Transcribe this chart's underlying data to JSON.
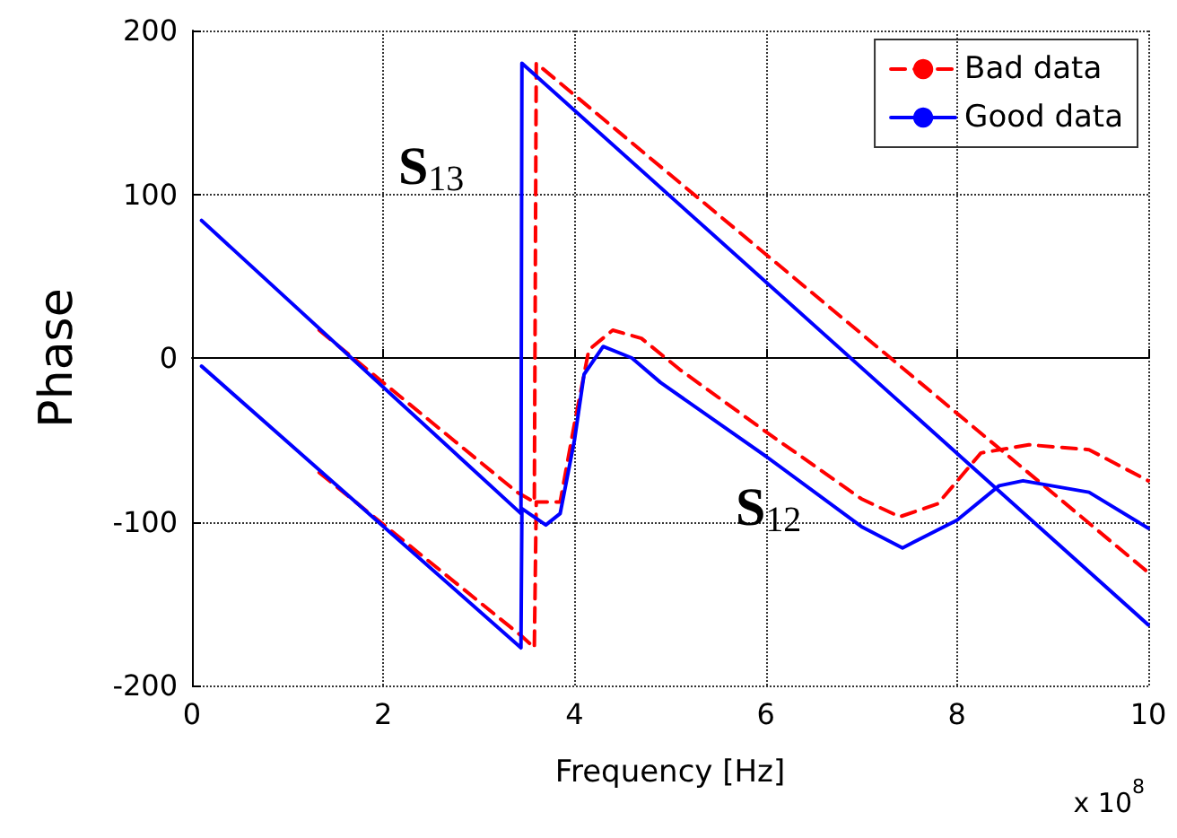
{
  "chart_data": {
    "type": "line",
    "xlabel": "Frequency [Hz]",
    "ylabel": "Phase",
    "xlim": [
      0,
      10
    ],
    "ylim": [
      -200,
      200
    ],
    "xticks": [
      0,
      2,
      4,
      6,
      8,
      10
    ],
    "yticks": [
      -200,
      -100,
      0,
      100,
      200
    ],
    "grid": true,
    "legend": "top right",
    "marker": "none",
    "series": [
      {
        "name": "Bad data",
        "color": "#ff0000",
        "line_style": "dashed",
        "x": [
          1.33,
          3.4,
          3.58,
          3.6,
          10
        ],
        "values": [
          17,
          -82,
          -88,
          180,
          -131
        ]
      },
      {
        "color": "#ff0000",
        "line_style": "dashed",
        "x": [
          1.33,
          3.45,
          3.58,
          3.6,
          3.85,
          4.0,
          4.15,
          4.4,
          4.7,
          5.1,
          6,
          7,
          7.4,
          7.8,
          8.25,
          8.75,
          9.38,
          10
        ],
        "values": [
          -70,
          -170,
          -177,
          -88,
          -88,
          -40,
          5,
          17,
          12,
          -7,
          -45,
          -86,
          -97,
          -89,
          -58,
          -53,
          -56,
          -75
        ]
      },
      {
        "name": "Good data",
        "color": "#0000ff",
        "line_style": "solid",
        "x": [
          0.1,
          3.44,
          3.45,
          10
        ],
        "values": [
          84,
          -95,
          180,
          -163
        ]
      },
      {
        "color": "#0000ff",
        "line_style": "solid",
        "x": [
          0.1,
          3.44,
          3.45,
          3.7,
          3.85,
          4.0,
          4.1,
          4.3,
          4.6,
          4.9,
          6,
          7,
          7.43,
          8,
          8.44,
          8.69,
          9.38,
          10
        ],
        "values": [
          -5,
          -177,
          -92,
          -102,
          -95,
          -50,
          -10,
          7,
          0,
          -15,
          -60,
          -103,
          -116,
          -99,
          -78,
          -75,
          -82,
          -104
        ]
      }
    ],
    "annotations": [
      "S$_{13}$",
      "S$_{12}$",
      "x 10$^{8}$"
    ]
  }
}
